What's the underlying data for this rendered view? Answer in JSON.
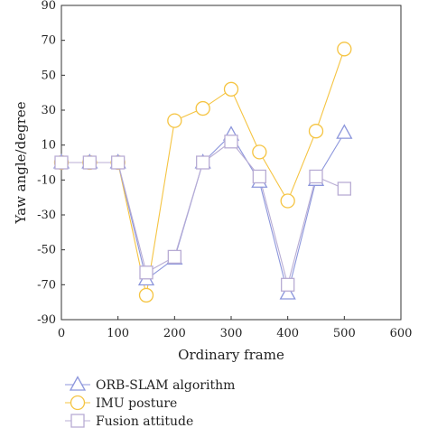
{
  "chart_data": {
    "type": "line",
    "title": "",
    "xlabel": "Ordinary frame",
    "ylabel": "Yaw angle/degree",
    "xlim": [
      0,
      600
    ],
    "ylim": [
      -90,
      90
    ],
    "xticks": [
      0,
      100,
      200,
      300,
      400,
      500,
      600
    ],
    "yticks": [
      90,
      70,
      50,
      30,
      10,
      -10,
      -30,
      -50,
      -70,
      -90
    ],
    "grid": false,
    "legend_position": "bottom-left",
    "x": [
      0,
      50,
      100,
      150,
      200,
      250,
      300,
      350,
      400,
      450,
      500
    ],
    "series": [
      {
        "name": "ORB-SLAM algorithm",
        "marker": "triangle",
        "color": "#8c96dc",
        "values": [
          0,
          0,
          0,
          -67,
          -55,
          0,
          16,
          -11,
          -75,
          -10,
          17
        ]
      },
      {
        "name": "IMU posture",
        "marker": "circle",
        "color": "#f5c442",
        "values": [
          0,
          0,
          0,
          -76,
          24,
          31,
          42,
          6,
          -22,
          18,
          65
        ]
      },
      {
        "name": "Fusion attitude",
        "marker": "square",
        "color": "#b8acd4",
        "values": [
          0,
          0,
          0,
          -63,
          -54,
          0,
          12,
          -8,
          -70,
          -8,
          -15
        ]
      }
    ]
  }
}
